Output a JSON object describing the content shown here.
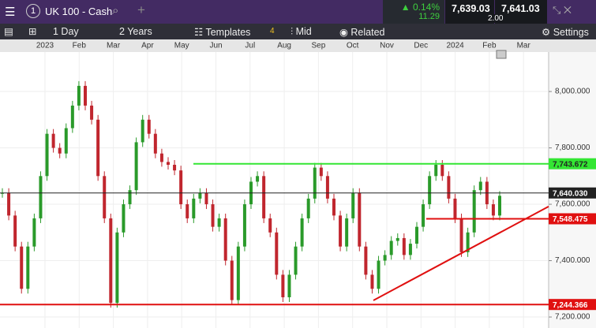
{
  "header": {
    "tab_number": "1",
    "instrument": "UK 100 - Cash",
    "change_pct": "0.14%",
    "change_pts": "11.29",
    "sell": "7,639.03",
    "buy": "7,641.03",
    "spread": "2.00"
  },
  "toolbar": {
    "interval": "1 Day",
    "range": "2 Years",
    "templates": "Templates",
    "templates_count": "4",
    "price_type": "Mid",
    "related": "Related",
    "settings": "Settings"
  },
  "chart_data": {
    "type": "candlestick",
    "closes": [
      7640,
      7560,
      7450,
      7300,
      7450,
      7550,
      7700,
      7850,
      7800,
      7780,
      7870,
      7950,
      8020,
      7950,
      7900,
      7700,
      7550,
      7250,
      7500,
      7600,
      7650,
      7820,
      7900,
      7850,
      7780,
      7750,
      7740,
      7720,
      7600,
      7550,
      7620,
      7640,
      7600,
      7520,
      7550,
      7400,
      7260,
      7450,
      7600,
      7680,
      7700,
      7550,
      7500,
      7350,
      7270,
      7350,
      7450,
      7550,
      7620,
      7730,
      7700,
      7620,
      7560,
      7450,
      7550,
      7640,
      7450,
      7350,
      7300,
      7400,
      7420,
      7470,
      7480,
      7420,
      7460,
      7520,
      7600,
      7700,
      7740,
      7700,
      7620,
      7550,
      7430,
      7500,
      7650,
      7680,
      7600,
      7560,
      7630
    ],
    "xticks": [
      "2023",
      "Feb",
      "Mar",
      "Apr",
      "May",
      "Jun",
      "Jul",
      "Aug",
      "Sep",
      "Oct",
      "Nov",
      "Dec",
      "2024",
      "Feb",
      "Mar"
    ],
    "ylim": [
      7161,
      8140
    ],
    "yticks": [
      {
        "value": 8000,
        "label": "8,000.000"
      },
      {
        "value": 7800,
        "label": "7,800.000"
      },
      {
        "value": 7600,
        "label": "7,600.000"
      },
      {
        "value": 7400,
        "label": "7,400.000"
      },
      {
        "value": 7200,
        "label": "7,200.000"
      }
    ],
    "levels": [
      {
        "value": 7743.672,
        "label": "7,743.672",
        "color": "#33e633"
      },
      {
        "value": 7640.03,
        "label": "7,640.030",
        "color": "#222222"
      },
      {
        "value": 7548.475,
        "label": "7,548.475",
        "color": "#e01010"
      },
      {
        "value": 7244.366,
        "label": "7,244.366",
        "color": "#e01010"
      }
    ],
    "trendline": {
      "start": 7259,
      "end": 7592,
      "color": "#e01010"
    },
    "up_color": "#2a9a2a",
    "down_color": "#c0262e",
    "grid": true
  }
}
